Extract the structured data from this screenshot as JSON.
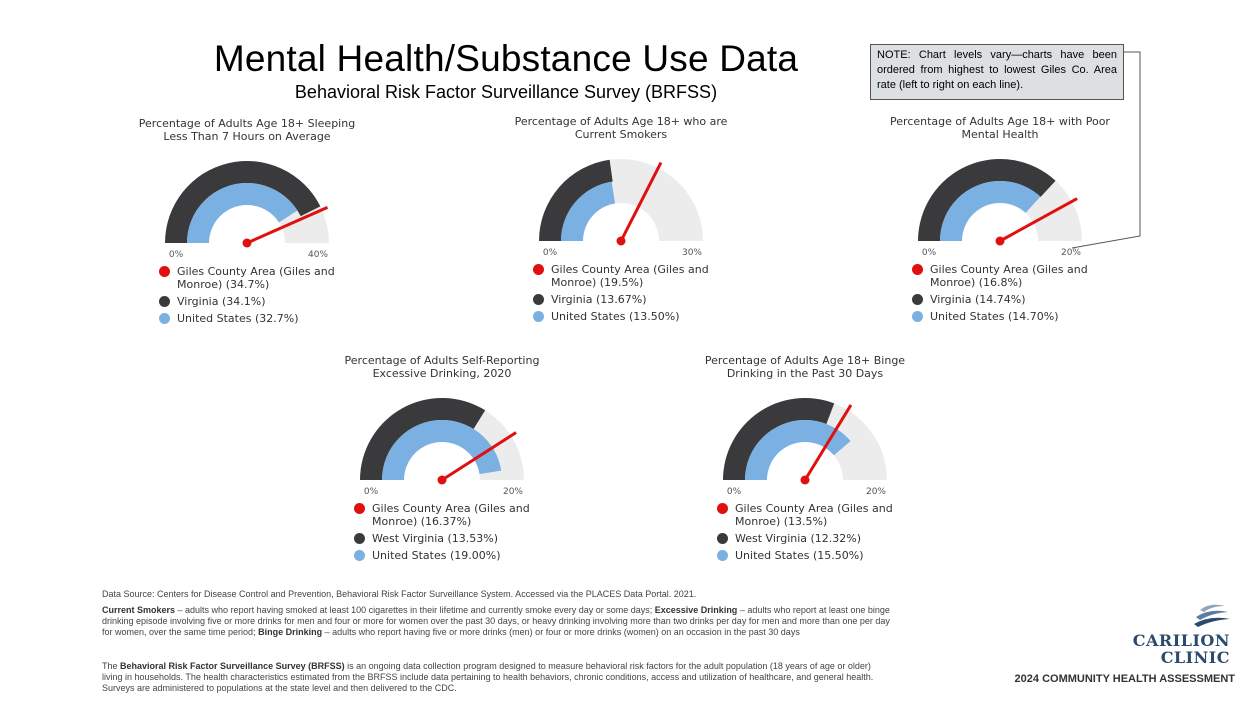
{
  "page": {
    "title": "Mental Health/Substance Use Data",
    "subtitle": "Behavioral Risk Factor Surveillance Survey (BRFSS)",
    "note": "NOTE:  Chart levels vary—charts have been ordered from highest to lowest Giles Co. Area rate (left to right on each line)."
  },
  "colors": {
    "local": "#e01010",
    "state": "#3a3a3c",
    "us": "#7ab0e2",
    "track": "#ececec"
  },
  "chart_data": [
    {
      "type": "gauge",
      "title": "Percentage of Adults Age 18+ Sleeping Less Than 7 Hours on Average",
      "min_label": "0%",
      "max_label": "40%",
      "max": 40,
      "state_value": 34.1,
      "us_value": 32.7,
      "needle_value": 34.7,
      "legend": [
        "Giles County Area (Giles and Monroe) (34.7%)",
        "Virginia (34.1%)",
        "United States (32.7%)"
      ]
    },
    {
      "type": "gauge",
      "title": "Percentage of Adults Age 18+ who are Current Smokers",
      "min_label": "0%",
      "max_label": "30%",
      "max": 30,
      "state_value": 13.67,
      "us_value": 13.5,
      "needle_value": 19.5,
      "legend": [
        "Giles County Area (Giles and Monroe) (19.5%)",
        "Virginia (13.67%)",
        "United States (13.50%)"
      ]
    },
    {
      "type": "gauge",
      "title": "Percentage of Adults Age 18+ with Poor Mental Health",
      "min_label": "0%",
      "max_label": "20%",
      "max": 20,
      "state_value": 14.74,
      "us_value": 14.7,
      "needle_value": 16.8,
      "legend": [
        "Giles County Area (Giles and Monroe) (16.8%)",
        "Virginia (14.74%)",
        "United States (14.70%)"
      ]
    },
    {
      "type": "gauge",
      "title": "Percentage of Adults Self-Reporting Excessive Drinking, 2020",
      "min_label": "0%",
      "max_label": "20%",
      "max": 20,
      "state_value": 13.53,
      "us_value": 19.0,
      "needle_value": 16.37,
      "legend": [
        "Giles County Area (Giles and Monroe) (16.37%)",
        "West Virginia (13.53%)",
        "United States (19.00%)"
      ]
    },
    {
      "type": "gauge",
      "title": "Percentage of Adults Age 18+ Binge Drinking in the Past 30 Days",
      "min_label": "0%",
      "max_label": "20%",
      "max": 20,
      "state_value": 12.32,
      "us_value": 15.5,
      "needle_value": 13.5,
      "legend": [
        "Giles County Area (Giles and Monroe) (13.5%)",
        "West Virginia (12.32%)",
        "United States (15.50%)"
      ]
    }
  ],
  "footer": {
    "source": "Data Source: Centers for Disease Control and Prevention, Behavioral Risk Factor Surveillance System. Accessed via the PLACES Data Portal. 2021.",
    "def_smokers_term": "Current Smokers",
    "def_smokers_text": " – adults who report having smoked at least 100 cigarettes in their lifetime and currently smoke every day or some days; ",
    "def_excessive_term": "Excessive Drinking",
    "def_excessive_text": " – adults who report at least one binge drinking episode involving five or more drinks for men and four or more for women over the past 30 days, or heavy drinking involving more than two drinks per day for men and more than one per day for women, over the same time period; ",
    "def_binge_term": "Binge Drinking",
    "def_binge_text": " – adults who report having five or more drinks (men) or four or more drinks (women) on an occasion in the past 30 days",
    "brfss_pre": "The ",
    "brfss_term": "Behavioral Risk Factor Surveillance Survey (BRFSS)",
    "brfss_text": " is an ongoing data collection program designed to measure behavioral risk factors for the adult population (18 years of age or older) living in households. The health characteristics estimated from the BRFSS include data pertaining to health behaviors, chronic conditions, access and utilization of healthcare, and general health. Surveys are administered to populations at the state level and then delivered to the CDC."
  },
  "branding": {
    "logo_line1": "CARILION",
    "logo_line2": "CLINIC",
    "assessment": "2024 COMMUNITY HEALTH ASSESSMENT"
  }
}
